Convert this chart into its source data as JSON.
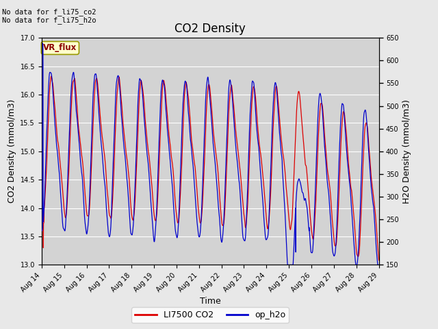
{
  "title": "CO2 Density",
  "xlabel": "Time",
  "ylabel_left": "CO2 Density (mmol/m3)",
  "ylabel_right": "H2O Density (mmol/m3)",
  "top_text_1": "No data for f_li75_co2",
  "top_text_2": "No data for f_li75_h2o",
  "vr_flux_label": "VR_flux",
  "legend_entries": [
    "LI7500 CO2",
    "op_h2o"
  ],
  "co2_color": "#dd0000",
  "h2o_color": "#0000cc",
  "ylim_left": [
    13.0,
    17.0
  ],
  "ylim_right": [
    150,
    650
  ],
  "yticks_left": [
    13.0,
    13.5,
    14.0,
    14.5,
    15.0,
    15.5,
    16.0,
    16.5,
    17.0
  ],
  "yticks_right": [
    150,
    200,
    250,
    300,
    350,
    400,
    450,
    500,
    550,
    600,
    650
  ],
  "xtick_labels": [
    "Aug 14",
    "Aug 15",
    "Aug 16",
    "Aug 17",
    "Aug 18",
    "Aug 19",
    "Aug 20",
    "Aug 21",
    "Aug 22",
    "Aug 23",
    "Aug 24",
    "Aug 25",
    "Aug 26",
    "Aug 27",
    "Aug 28",
    "Aug 29"
  ],
  "n_days": 15,
  "fig_bg": "#e8e8e8",
  "plot_bg": "#d3d3d3",
  "grid_color": "white",
  "title_fontsize": 12,
  "axis_fontsize": 9,
  "tick_fontsize": 7,
  "linewidth": 0.9
}
